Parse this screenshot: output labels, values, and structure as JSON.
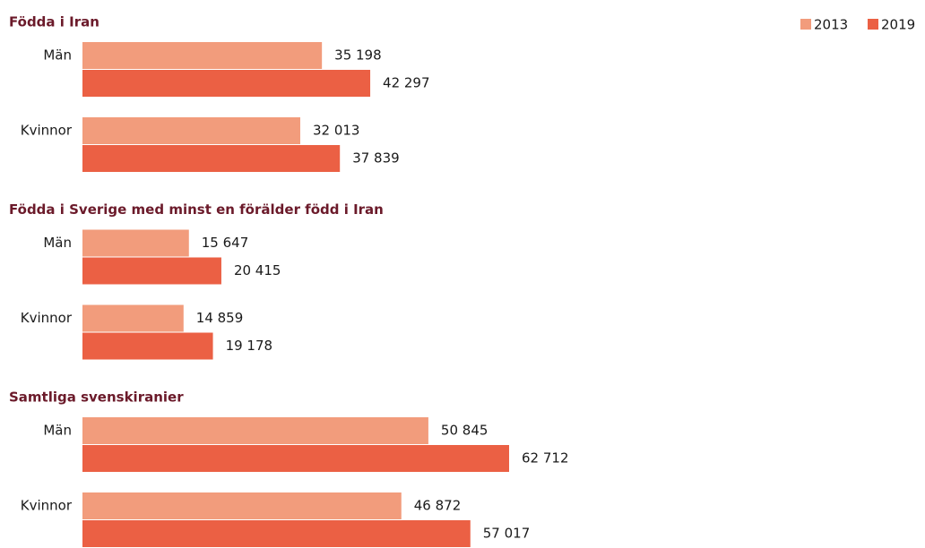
{
  "chart_data": [
    {
      "type": "bar",
      "orientation": "horizontal",
      "title": "Födda i Iran",
      "categories": [
        "Män",
        "Kvinnor"
      ],
      "series": [
        {
          "name": "2013",
          "color": "#f29c7c",
          "values": [
            35198,
            32013
          ],
          "value_labels": [
            "35 198",
            "32 013"
          ]
        },
        {
          "name": "2019",
          "color": "#eb6044",
          "values": [
            42297,
            37839
          ],
          "value_labels": [
            "42 297",
            "37 839"
          ]
        }
      ]
    },
    {
      "type": "bar",
      "orientation": "horizontal",
      "title": "Födda i Sverige med minst en förälder född i Iran",
      "categories": [
        "Män",
        "Kvinnor"
      ],
      "series": [
        {
          "name": "2013",
          "color": "#f29c7c",
          "values": [
            15647,
            14859
          ],
          "value_labels": [
            "15 647",
            "14 859"
          ]
        },
        {
          "name": "2019",
          "color": "#eb6044",
          "values": [
            20415,
            19178
          ],
          "value_labels": [
            "20 415",
            "19 178"
          ]
        }
      ]
    },
    {
      "type": "bar",
      "orientation": "horizontal",
      "title": "Samtliga svenskiranier",
      "categories": [
        "Män",
        "Kvinnor"
      ],
      "series": [
        {
          "name": "2013",
          "color": "#f29c7c",
          "values": [
            50845,
            46872
          ],
          "value_labels": [
            "50 845",
            "46 872"
          ]
        },
        {
          "name": "2019",
          "color": "#eb6044",
          "values": [
            62712,
            57017
          ],
          "value_labels": [
            "62 712",
            "57 017"
          ]
        }
      ]
    }
  ]
}
